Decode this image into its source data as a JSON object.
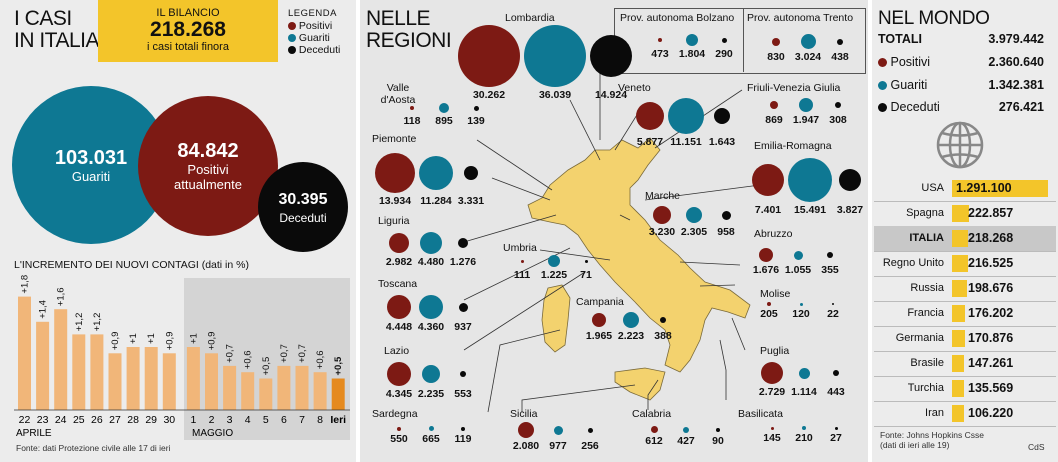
{
  "colors": {
    "positivi": "#7d1a14",
    "guariti": "#0e7893",
    "deceduti": "#0a0a0a",
    "yellow": "#f3c52a",
    "bar": "#f1b679",
    "bar_last": "#e58a1f"
  },
  "italia": {
    "title_line1": "I CASI",
    "title_line2": "IN ITALIA",
    "bilancio_label": "IL BILANCIO",
    "bilancio_value": "218.268",
    "bilancio_sub": "i casi totali finora",
    "legend_title": "LEGENDA",
    "legend": [
      "Positivi",
      "Guariti",
      "Deceduti"
    ],
    "guariti_value": "103.031",
    "guariti_label": "Guariti",
    "positivi_value": "84.842",
    "positivi_label1": "Positivi",
    "positivi_label2": "attualmente",
    "deceduti_value": "30.395",
    "deceduti_label": "Deceduti",
    "fonte": "Fonte: dati Protezione civile alle 17 di ieri"
  },
  "chart_data": {
    "type": "bar",
    "title": "L'INCREMENTO DEI NUOVI CONTAGI (dati in %)",
    "categories": [
      "22",
      "23",
      "24",
      "25",
      "26",
      "27",
      "28",
      "29",
      "30",
      "1",
      "2",
      "3",
      "4",
      "5",
      "6",
      "7",
      "8",
      "Ieri"
    ],
    "values": [
      1.8,
      1.4,
      1.6,
      1.2,
      1.2,
      0.9,
      1,
      1,
      0.9,
      1,
      0.9,
      0.7,
      0.6,
      0.5,
      0.7,
      0.7,
      0.6,
      0.5
    ],
    "value_labels": [
      "+1,8",
      "+1,4",
      "+1,6",
      "+1,2",
      "+1,2",
      "+0,9",
      "+1",
      "+1",
      "+0,9",
      "+1",
      "+0,9",
      "+0,7",
      "+0,6",
      "+0,5",
      "+0,7",
      "+0,7",
      "+0,6",
      "+0,5"
    ],
    "month_labels": [
      "APRILE",
      "MAGGIO"
    ],
    "ylim": [
      0,
      2
    ]
  },
  "regioni": {
    "title_line1": "NELLE",
    "title_line2": "REGIONI",
    "items": [
      {
        "name": "Lombardia",
        "p": "30.262",
        "g": "36.039",
        "d": "14.924"
      },
      {
        "name": "Valle d'Aosta",
        "p": "118",
        "g": "895",
        "d": "139"
      },
      {
        "name": "Piemonte",
        "p": "13.934",
        "g": "11.284",
        "d": "3.331"
      },
      {
        "name": "Liguria",
        "p": "2.982",
        "g": "4.480",
        "d": "1.276"
      },
      {
        "name": "Toscana",
        "p": "4.448",
        "g": "4.360",
        "d": "937"
      },
      {
        "name": "Lazio",
        "p": "4.345",
        "g": "2.235",
        "d": "553"
      },
      {
        "name": "Sardegna",
        "p": "550",
        "g": "665",
        "d": "119"
      },
      {
        "name": "Sicilia",
        "p": "2.080",
        "g": "977",
        "d": "256"
      },
      {
        "name": "Calabria",
        "p": "612",
        "g": "427",
        "d": "90"
      },
      {
        "name": "Basilicata",
        "p": "145",
        "g": "210",
        "d": "27"
      },
      {
        "name": "Puglia",
        "p": "2.729",
        "g": "1.114",
        "d": "443"
      },
      {
        "name": "Molise",
        "p": "205",
        "g": "120",
        "d": "22"
      },
      {
        "name": "Campania",
        "p": "1.965",
        "g": "2.223",
        "d": "388"
      },
      {
        "name": "Abruzzo",
        "p": "1.676",
        "g": "1.055",
        "d": "355"
      },
      {
        "name": "Umbria",
        "p": "111",
        "g": "1.225",
        "d": "71"
      },
      {
        "name": "Marche",
        "p": "3.230",
        "g": "2.305",
        "d": "958"
      },
      {
        "name": "Emilia-Romagna",
        "p": "7.401",
        "g": "15.491",
        "d": "3.827"
      },
      {
        "name": "Friuli-Venezia Giulia",
        "p": "869",
        "g": "1.947",
        "d": "308"
      },
      {
        "name": "Veneto",
        "p": "5.877",
        "g": "11.151",
        "d": "1.643"
      },
      {
        "name": "Prov. autonoma Bolzano",
        "p": "473",
        "g": "1.804",
        "d": "290"
      },
      {
        "name": "Prov. autonoma Trento",
        "p": "830",
        "g": "3.024",
        "d": "438"
      }
    ]
  },
  "mondo": {
    "title": "NEL MONDO",
    "totali_label": "TOTALI",
    "totali_value": "3.979.442",
    "positivi_label": "Positivi",
    "positivi_value": "2.360.640",
    "guariti_label": "Guariti",
    "guariti_value": "1.342.381",
    "deceduti_label": "Deceduti",
    "deceduti_value": "276.421",
    "countries": [
      {
        "name": "USA",
        "value": "1.291.100",
        "num": 1291100
      },
      {
        "name": "Spagna",
        "value": "222.857",
        "num": 222857
      },
      {
        "name": "ITALIA",
        "value": "218.268",
        "num": 218268
      },
      {
        "name": "Regno Unito",
        "value": "216.525",
        "num": 216525
      },
      {
        "name": "Russia",
        "value": "198.676",
        "num": 198676
      },
      {
        "name": "Francia",
        "value": "176.202",
        "num": 176202
      },
      {
        "name": "Germania",
        "value": "170.876",
        "num": 170876
      },
      {
        "name": "Brasile",
        "value": "147.261",
        "num": 147261
      },
      {
        "name": "Turchia",
        "value": "135.569",
        "num": 135569
      },
      {
        "name": "Iran",
        "value": "106.220",
        "num": 106220
      }
    ],
    "fonte1": "Fonte: Johns Hopkins Csse",
    "fonte2": "(dati di ieri alle 19)",
    "credit": "CdS"
  }
}
